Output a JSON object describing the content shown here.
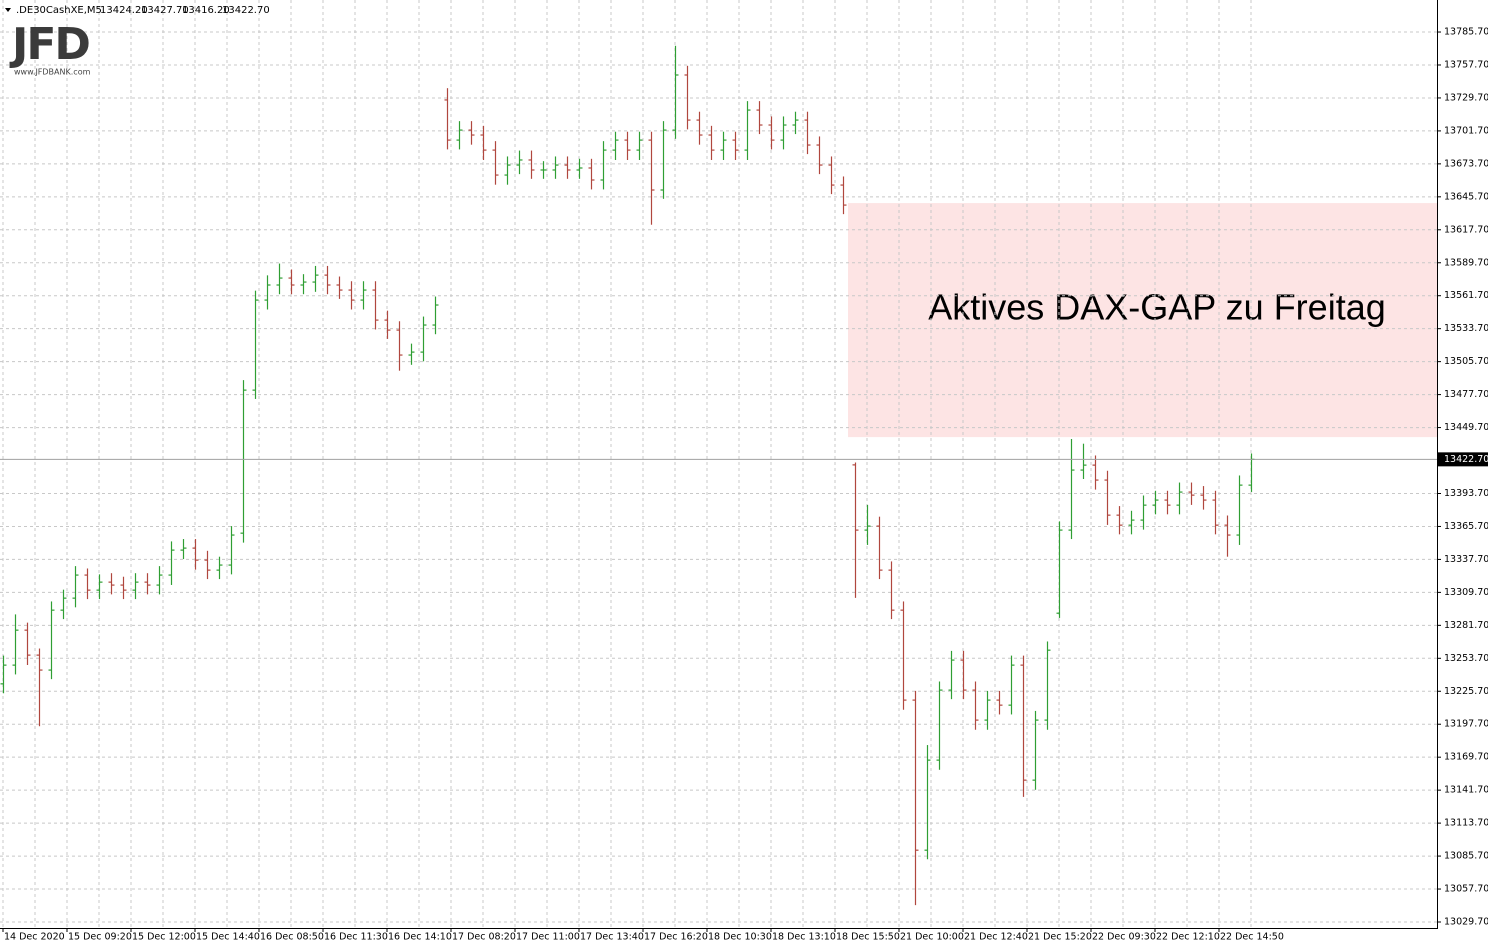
{
  "header": {
    "symbol": ".DE30CashXE,M5",
    "ohlc": [
      "13424.20",
      "13427.70",
      "13416.20",
      "13422.70"
    ]
  },
  "logo": {
    "text": "JFD",
    "url": "www.JFDBANK.com"
  },
  "chart_data": {
    "type": "ohlc",
    "up_color": "#2f9e33",
    "down_color": "#b0473e",
    "grid": true,
    "ylim": [
      13024.6,
      13812.9
    ],
    "yticks": [
      {
        "value": 13785.7,
        "label": "13785.70"
      },
      {
        "value": 13757.7,
        "label": "13757.70"
      },
      {
        "value": 13729.7,
        "label": "13729.70"
      },
      {
        "value": 13701.7,
        "label": "13701.70"
      },
      {
        "value": 13673.7,
        "label": "13673.70"
      },
      {
        "value": 13645.7,
        "label": "13645.70"
      },
      {
        "value": 13617.7,
        "label": "13617.70"
      },
      {
        "value": 13589.7,
        "label": "13589.70"
      },
      {
        "value": 13561.7,
        "label": "13561.70"
      },
      {
        "value": 13533.7,
        "label": "13533.70"
      },
      {
        "value": 13505.7,
        "label": "13505.70"
      },
      {
        "value": 13477.7,
        "label": "13477.70"
      },
      {
        "value": 13449.7,
        "label": "13449.70"
      },
      {
        "value": 13393.7,
        "label": "13393.70"
      },
      {
        "value": 13365.7,
        "label": "13365.70"
      },
      {
        "value": 13337.7,
        "label": "13337.70"
      },
      {
        "value": 13309.7,
        "label": "13309.70"
      },
      {
        "value": 13281.7,
        "label": "13281.70"
      },
      {
        "value": 13253.7,
        "label": "13253.70"
      },
      {
        "value": 13225.7,
        "label": "13225.70"
      },
      {
        "value": 13197.7,
        "label": "13197.70"
      },
      {
        "value": 13169.7,
        "label": "13169.70"
      },
      {
        "value": 13141.7,
        "label": "13141.70"
      },
      {
        "value": 13113.7,
        "label": "13113.70"
      },
      {
        "value": 13085.7,
        "label": "13085.70"
      },
      {
        "value": 13057.7,
        "label": "13057.70"
      },
      {
        "value": 13029.7,
        "label": "13029.70"
      }
    ],
    "x_labels": [
      "14 Dec 2020",
      "15 Dec 09:20",
      "15 Dec 12:00",
      "15 Dec 14:40",
      "16 Dec 08:50",
      "16 Dec 11:30",
      "16 Dec 14:10",
      "17 Dec 08:20",
      "17 Dec 11:00",
      "17 Dec 13:40",
      "17 Dec 16:20",
      "18 Dec 10:30",
      "18 Dec 13:10",
      "18 Dec 15:50",
      "21 Dec 10:00",
      "21 Dec 12:40",
      "21 Dec 15:20",
      "22 Dec 09:30",
      "22 Dec 12:10",
      "22 Dec 14:50"
    ],
    "current_price": {
      "value": 13422.7,
      "label": "13422.70"
    },
    "zone": {
      "from": 13441.6,
      "to": 13640.4,
      "color": "#fde4e4",
      "label": "Aktives DAX-GAP zu Freitag"
    },
    "open": [
      13232.0,
      13247.9,
      13277.6,
      13256.4,
      13243.7,
      13294.6,
      13304.8,
      13324.4,
      13311.6,
      13318.4,
      13315.9,
      13311.6,
      13318.4,
      13315.9,
      13324.4,
      13345.6,
      13347.3,
      13337.1,
      13328.6,
      13332.9,
      13360.0,
      13481.5,
      13558.0,
      13570.8,
      13576.7,
      13570.8,
      13573.3,
      13579.2,
      13570.8,
      13566.5,
      13558.0,
      13566.5,
      13541.0,
      13532.5,
      13511.3,
      13513.8,
      13536.8,
      13728.0,
      13693.9,
      13702.4,
      13698.2,
      13685.4,
      13664.2,
      13672.7,
      13677.0,
      13668.5,
      13668.5,
      13672.7,
      13668.5,
      13670.2,
      13660.0,
      13685.4,
      13693.9,
      13685.4,
      13693.9,
      13651.5,
      13702.4,
      13749.2,
      13710.9,
      13698.2,
      13685.4,
      13693.9,
      13685.4,
      13719.4,
      13706.7,
      13693.9,
      13706.7,
      13710.9,
      13689.7,
      13672.7,
      13655.7,
      13418.0,
      13362.6,
      13366.0,
      13328.6,
      13294.6,
      13218.2,
      13090.7,
      13167.2,
      13226.7,
      13252.2,
      13226.7,
      13201.2,
      13218.2,
      13213.9,
      13247.9,
      13150.2,
      13201.2,
      13292.0,
      13362.6,
      13413.6,
      13417.8,
      13405.1,
      13375.3,
      13366.8,
      13371.1,
      13383.8,
      13388.1,
      13383.8,
      13394.9,
      13392.3,
      13388.1,
      13366.8,
      13358.4,
      13400.8
    ],
    "high": [
      13256,
      13291,
      13284,
      13262,
      13302,
      13312,
      13332,
      13330,
      13325,
      13326,
      13323,
      13326,
      13326,
      13332,
      13353,
      13355,
      13355,
      13345,
      13340,
      13366,
      13490,
      13566,
      13579,
      13589,
      13584,
      13580,
      13587,
      13587,
      13578,
      13574,
      13574,
      13574,
      13549,
      13540,
      13521,
      13544,
      13561,
      13738,
      13710,
      13710,
      13706,
      13693,
      13680,
      13685,
      13685,
      13676,
      13680,
      13680,
      13678,
      13678,
      13693,
      13701,
      13701,
      13701,
      13701,
      13710,
      13774,
      13757,
      13718,
      13706,
      13701,
      13701,
      13727,
      13727,
      13714,
      13714,
      13718,
      13718,
      13697,
      13680,
      13663,
      13420,
      13384,
      13374,
      13336,
      13302,
      13226,
      13180,
      13234,
      13260,
      13260,
      13234,
      13226,
      13226,
      13256,
      13256,
      13209,
      13268,
      13370,
      13440,
      13436,
      13426,
      13413,
      13383,
      13379,
      13392,
      13396,
      13396,
      13403,
      13403,
      13400,
      13396,
      13375,
      13409,
      13427.7
    ],
    "low": [
      13224,
      13240,
      13248,
      13196,
      13236,
      13287,
      13297,
      13304,
      13304,
      13308,
      13304,
      13304,
      13308,
      13308,
      13316,
      13338,
      13329,
      13321,
      13321,
      13325,
      13352,
      13474,
      13550,
      13563,
      13563,
      13563,
      13565,
      13563,
      13559,
      13550,
      13550,
      13533,
      13525,
      13498,
      13503,
      13506,
      13529,
      13686,
      13686,
      13690,
      13677,
      13656,
      13656,
      13665,
      13661,
      13661,
      13661,
      13661,
      13661,
      13652,
      13652,
      13677,
      13677,
      13677,
      13622,
      13644,
      13695,
      13703,
      13690,
      13677,
      13677,
      13677,
      13677,
      13699,
      13686,
      13686,
      13699,
      13682,
      13665,
      13648,
      13631,
      13305,
      13350,
      13321,
      13287,
      13210,
      13044,
      13083,
      13159,
      13219,
      13219,
      13193,
      13193,
      13206,
      13206,
      13136,
      13142,
      13193,
      13288,
      13355,
      13406,
      13397,
      13367,
      13359,
      13359,
      13363,
      13376,
      13376,
      13376,
      13384,
      13380,
      13359,
      13340,
      13350,
      13395
    ],
    "close": [
      13247.9,
      13277.6,
      13256.4,
      13243.7,
      13294.6,
      13304.8,
      13324.4,
      13311.6,
      13318.4,
      13315.9,
      13311.6,
      13318.4,
      13315.9,
      13324.4,
      13345.6,
      13347.3,
      13337.1,
      13328.6,
      13332.9,
      13358.4,
      13481.5,
      13558.0,
      13570.8,
      13576.7,
      13570.8,
      13573.3,
      13579.2,
      13570.8,
      13566.5,
      13558.0,
      13566.5,
      13541.0,
      13532.5,
      13511.3,
      13513.8,
      13536.8,
      13553.8,
      13693.9,
      13702.4,
      13698.2,
      13685.4,
      13664.2,
      13672.7,
      13677.0,
      13668.5,
      13668.5,
      13672.7,
      13668.5,
      13670.2,
      13660.0,
      13685.4,
      13693.9,
      13685.4,
      13693.9,
      13651.5,
      13702.4,
      13749.2,
      13710.9,
      13698.2,
      13685.4,
      13693.9,
      13685.4,
      13719.4,
      13706.7,
      13693.9,
      13706.7,
      13710.9,
      13689.7,
      13672.7,
      13655.7,
      13638.7,
      13362.6,
      13366.0,
      13328.6,
      13294.6,
      13218.2,
      13090.7,
      13167.2,
      13226.7,
      13252.2,
      13226.7,
      13201.2,
      13218.2,
      13213.9,
      13247.9,
      13150.2,
      13201.2,
      13260.6,
      13362.6,
      13413.6,
      13417.8,
      13405.1,
      13375.3,
      13366.8,
      13371.1,
      13383.8,
      13388.1,
      13383.8,
      13394.9,
      13392.3,
      13388.1,
      13366.8,
      13358.4,
      13400.8,
      13422.7
    ]
  }
}
